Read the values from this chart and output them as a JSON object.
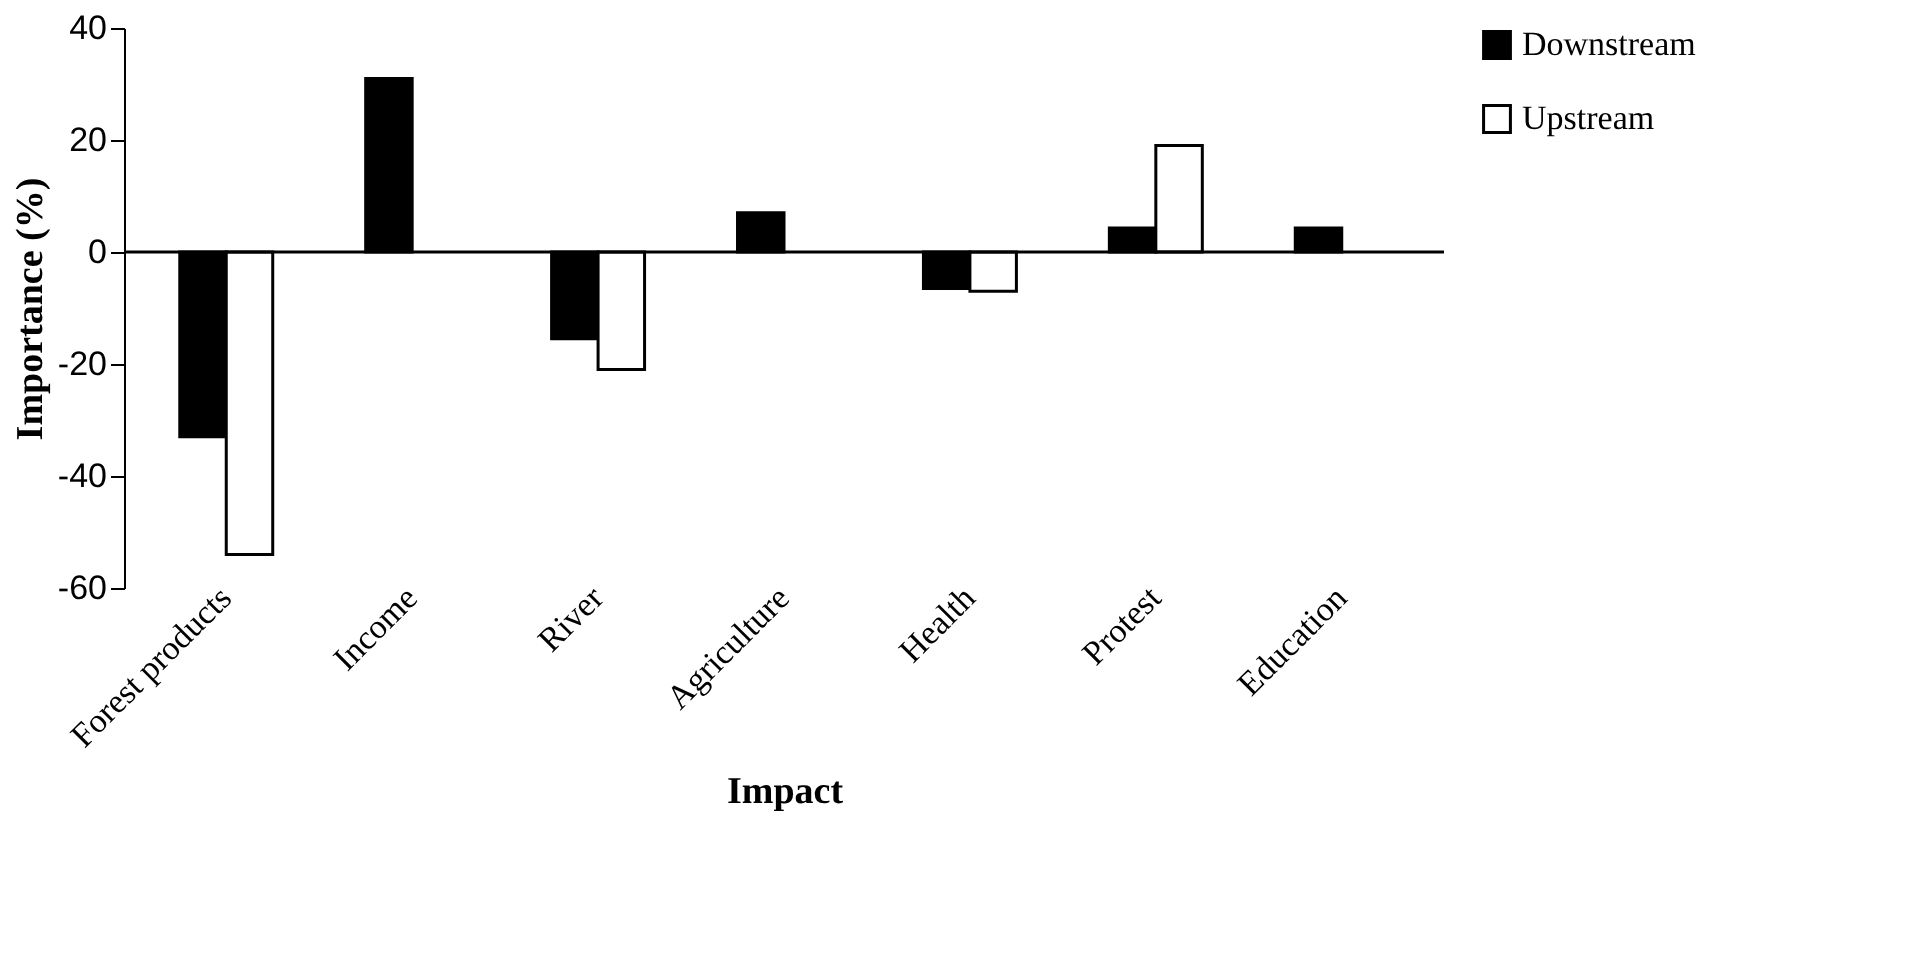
{
  "chart_data": {
    "type": "bar",
    "xlabel": "Impact",
    "ylabel": "Importance (%)",
    "categories": [
      "Forest products",
      "Income",
      "River",
      "Agriculture",
      "Health",
      "Protest",
      "Education"
    ],
    "series": [
      {
        "name": "Downstream",
        "color": "#000000",
        "values": [
          -33,
          31,
          -15.5,
          7,
          -6.5,
          4.3,
          4.3
        ]
      },
      {
        "name": "Upstream",
        "color": "#ffffff",
        "values": [
          -54,
          null,
          -21,
          null,
          -7,
          19,
          null
        ]
      }
    ],
    "ylim": [
      -60,
      40
    ],
    "yticks": [
      -60,
      -40,
      -20,
      0,
      20,
      40
    ],
    "ref_lines": [
      {
        "axis": "y",
        "value": 0,
        "color": "#000000"
      }
    ],
    "grid": false,
    "legend": "top right"
  }
}
